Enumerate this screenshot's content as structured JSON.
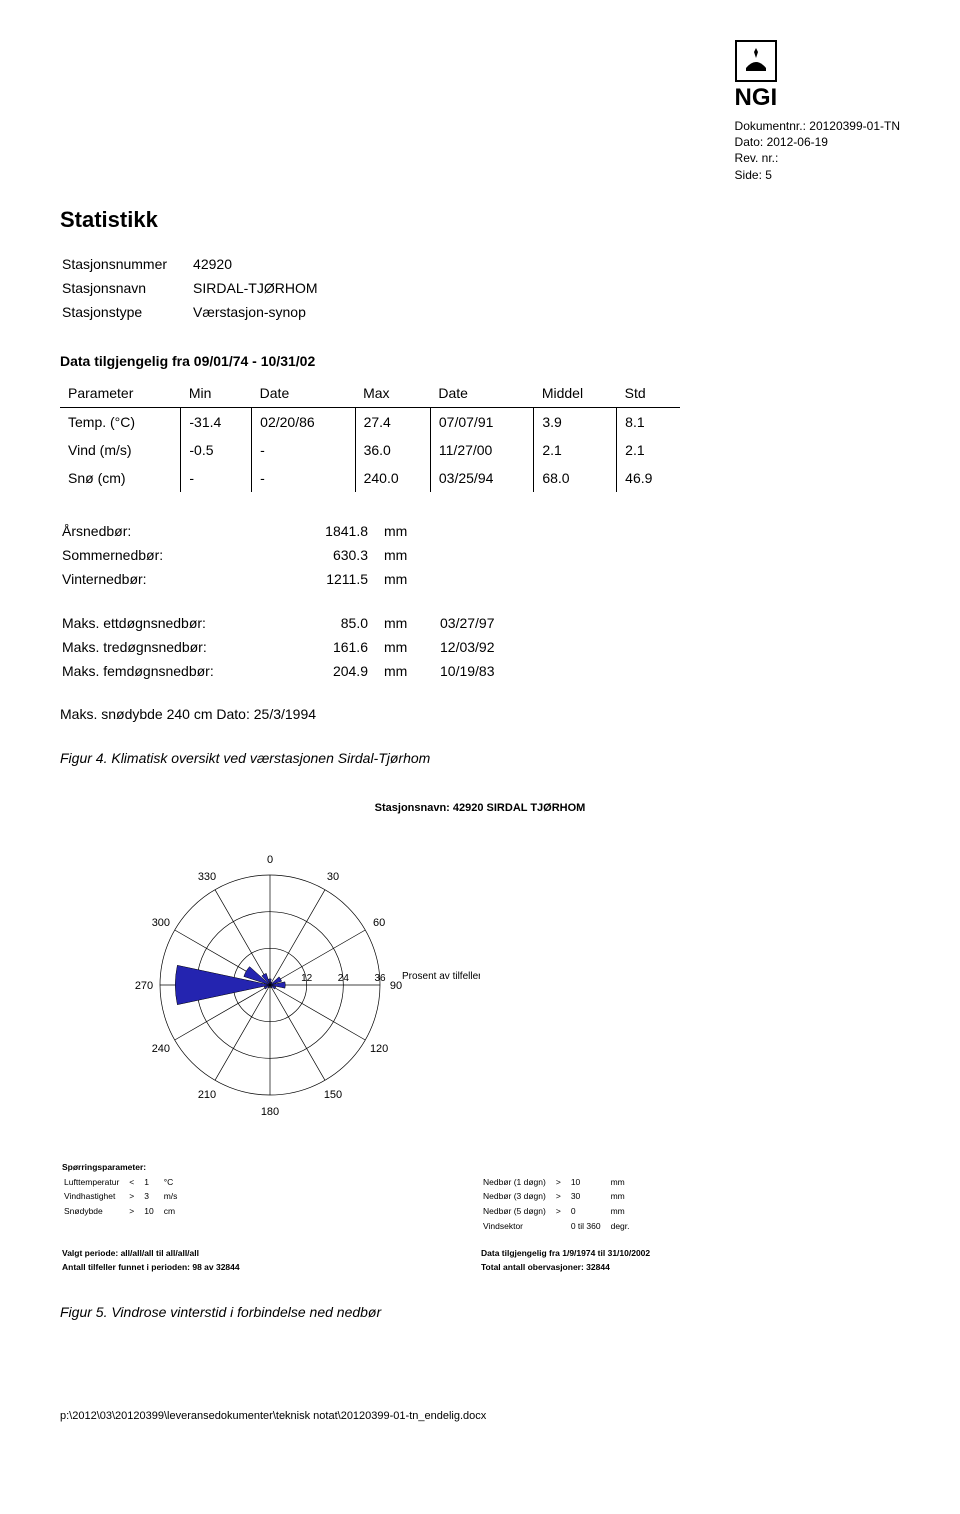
{
  "header": {
    "doc_nr_label": "Dokumentnr.:",
    "doc_nr": "20120399-01-TN",
    "date_label": "Dato:",
    "date": "2012-06-19",
    "rev_label": "Rev. nr.:",
    "rev": "",
    "side_label": "Side:",
    "side": "5",
    "logo_text": "NGI"
  },
  "stat_title": "Statistikk",
  "station": {
    "rows": [
      [
        "Stasjonsnummer",
        "42920"
      ],
      [
        "Stasjonsnavn",
        "SIRDAL-TJØRHOM"
      ],
      [
        "Stasjonstype",
        "Værstasjon-synop"
      ]
    ]
  },
  "data_avail": "Data tilgjengelig fra 09/01/74 - 10/31/02",
  "stats_table": {
    "headers": [
      "Parameter",
      "Min",
      "Date",
      "Max",
      "Date",
      "Middel",
      "Std"
    ],
    "rows": [
      [
        "Temp. (°C)",
        "-31.4",
        "02/20/86",
        "27.4",
        "07/07/91",
        "3.9",
        "8.1"
      ],
      [
        "Vind (m/s)",
        "-0.5",
        "-",
        "36.0",
        "11/27/00",
        "2.1",
        "2.1"
      ],
      [
        "Snø (cm)",
        "-",
        "-",
        "240.0",
        "03/25/94",
        "68.0",
        "46.9"
      ]
    ]
  },
  "precip": {
    "rows": [
      [
        "Årsnedbør:",
        "1841.8",
        "mm",
        ""
      ],
      [
        "Sommernedbør:",
        "630.3",
        "mm",
        ""
      ],
      [
        "Vinternedbør:",
        "1211.5",
        "mm",
        ""
      ]
    ],
    "rows2": [
      [
        "Maks. ettdøgnsnedbør:",
        "85.0",
        "mm",
        "03/27/97"
      ],
      [
        "Maks. tredøgnsnedbør:",
        "161.6",
        "mm",
        "12/03/92"
      ],
      [
        "Maks. femdøgnsnedbør:",
        "204.9",
        "mm",
        "10/19/83"
      ]
    ]
  },
  "snow_line": "Maks. snødybde 240 cm   Dato: 25/3/1994",
  "fig4_caption": "Figur 4. Klimatisk oversikt ved værstasjonen Sirdal-Tjørhom",
  "windrose": {
    "title": "Stasjonsnavn: 42920 SIRDAL TJØRHOM",
    "angle_labels": [
      "0",
      "30",
      "60",
      "90",
      "120",
      "150",
      "180",
      "210",
      "240",
      "270",
      "300",
      "330"
    ],
    "ring_labels": [
      "12",
      "24",
      "36"
    ],
    "pct_label": "Prosent av tilfeller",
    "sectors_deg": [
      0,
      30,
      60,
      90,
      120,
      150,
      180,
      210,
      240,
      270,
      300,
      330
    ],
    "values_pct": [
      2,
      1,
      4,
      5,
      2,
      1,
      0.5,
      1,
      2,
      31,
      9,
      4
    ],
    "max_ring": 36,
    "bar_color": "#2424b0",
    "ring_color": "#000000",
    "text_color": "#000000",
    "background_color": "#ffffff"
  },
  "params": {
    "left_header": "Spørringsparameter:",
    "left_rows": [
      [
        "Lufttemperatur",
        "<",
        "1",
        "°C"
      ],
      [
        "Vindhastighet",
        ">",
        "3",
        "m/s"
      ],
      [
        "Snødybde",
        ">",
        "10",
        "cm"
      ]
    ],
    "right_rows": [
      [
        "Nedbør (1 døgn)",
        ">",
        "10",
        "mm"
      ],
      [
        "Nedbør (3 døgn)",
        ">",
        "30",
        "mm"
      ],
      [
        "Nedbør (5 døgn)",
        ">",
        "0",
        "mm"
      ],
      [
        "Vindsektor",
        "",
        "0 til 360",
        "degr."
      ]
    ],
    "period_label": "Valgt periode: all/all/all til all/all/all",
    "period_right": "Data tilgjengelig fra 1/9/1974 til 31/10/2002",
    "count_label": "Antall tilfeller funnet i perioden: 98 av 32844",
    "count_right": "Total antall obervasjoner: 32844"
  },
  "fig5_caption": "Figur 5. Vindrose vinterstid i forbindelse ned nedbør",
  "footer_path": "p:\\2012\\03\\20120399\\leveransedokumenter\\teknisk notat\\20120399-01-tn_endelig.docx"
}
